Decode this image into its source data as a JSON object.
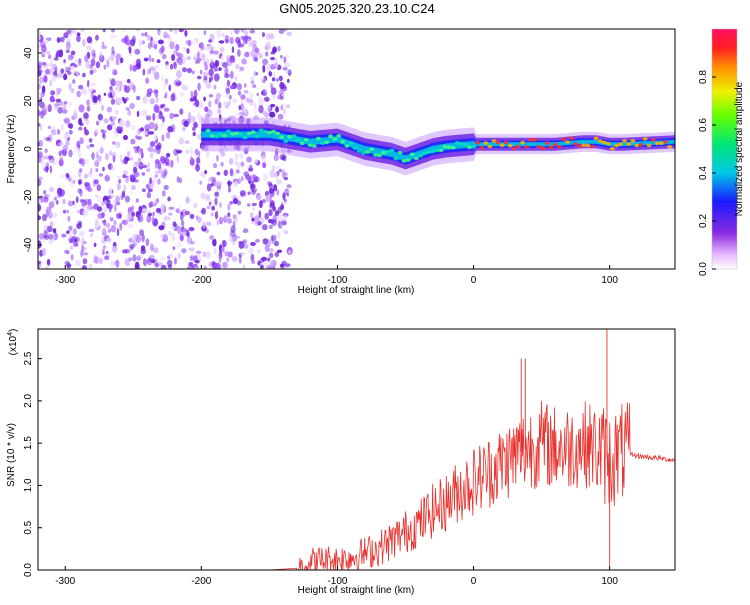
{
  "title": "GN05.2025.320.23.10.C24",
  "chart_data": [
    {
      "type": "heatmap",
      "name": "spectrogram",
      "xlabel": "Height of straight line (km)",
      "ylabel": "Frequency (Hz)",
      "xlim": [
        -320,
        148
      ],
      "ylim": [
        -50,
        50
      ],
      "xticks": [
        -300,
        -200,
        -100,
        0,
        100
      ],
      "xtick_labels": [
        "-300",
        "-200",
        "-100",
        "0",
        "100"
      ],
      "yticks": [
        -40,
        -20,
        0,
        20,
        40
      ],
      "ytick_labels": [
        "-40",
        "-20",
        "0",
        "20",
        "40"
      ],
      "ridge": {
        "x": [
          -200,
          -150,
          -120,
          -100,
          -80,
          -60,
          -50,
          -40,
          -30,
          -20,
          0,
          20,
          40,
          60,
          80,
          90,
          100,
          110,
          148
        ],
        "y": [
          6,
          6,
          3,
          4,
          0,
          -2,
          -4,
          -2,
          0,
          1,
          2,
          2,
          2,
          2,
          3,
          3,
          2,
          2,
          3
        ]
      },
      "colorbar": {
        "label": "Normalized spectral amplitude",
        "range": [
          0,
          1
        ],
        "ticks": [
          0.0,
          0.2,
          0.4,
          0.6,
          0.8
        ],
        "tick_labels": [
          "0.0",
          "0.2",
          "0.4",
          "0.6",
          "0.8"
        ]
      }
    },
    {
      "type": "line",
      "name": "snr",
      "xlabel": "Height of straight line (km)",
      "ylabel": "SNR (10 * v/v)",
      "multiplier": "(x10",
      "multiplier_exp": "4",
      "multiplier_close": ")",
      "xlim": [
        -320,
        148
      ],
      "ylim": [
        0,
        2.85
      ],
      "xticks": [
        -300,
        -200,
        -100,
        0,
        100
      ],
      "xtick_labels": [
        "-300",
        "-200",
        "-100",
        "0",
        "100"
      ],
      "yticks": [
        0.0,
        0.5,
        1.0,
        1.5,
        2.0,
        2.5
      ],
      "ytick_labels": [
        "0.0",
        "0.5",
        "1.0",
        "1.5",
        "2.0",
        "2.5"
      ],
      "series": [
        {
          "name": "SNR",
          "color": "#e8322e",
          "x": [
            -320,
            -250,
            -200,
            -150,
            -130,
            -120,
            -110,
            -100,
            -90,
            -80,
            -70,
            -60,
            -50,
            -40,
            -30,
            -20,
            -10,
            0,
            10,
            20,
            30,
            40,
            50,
            60,
            70,
            80,
            90,
            100,
            110,
            120,
            148
          ],
          "y": [
            0.0,
            0.0,
            0.0,
            0.0,
            0.02,
            0.1,
            0.12,
            0.12,
            0.15,
            0.2,
            0.25,
            0.35,
            0.45,
            0.55,
            0.7,
            0.8,
            0.95,
            1.05,
            1.15,
            1.25,
            1.35,
            1.45,
            1.5,
            1.45,
            1.45,
            1.5,
            1.45,
            1.3,
            1.4,
            1.35,
            1.3
          ]
        }
      ],
      "spikes": [
        {
          "x": 35,
          "y": 2.5
        },
        {
          "x": 38,
          "y": 2.5
        },
        {
          "x": 98,
          "y": 2.85
        },
        {
          "x": 100,
          "y": 0.05
        }
      ]
    }
  ]
}
